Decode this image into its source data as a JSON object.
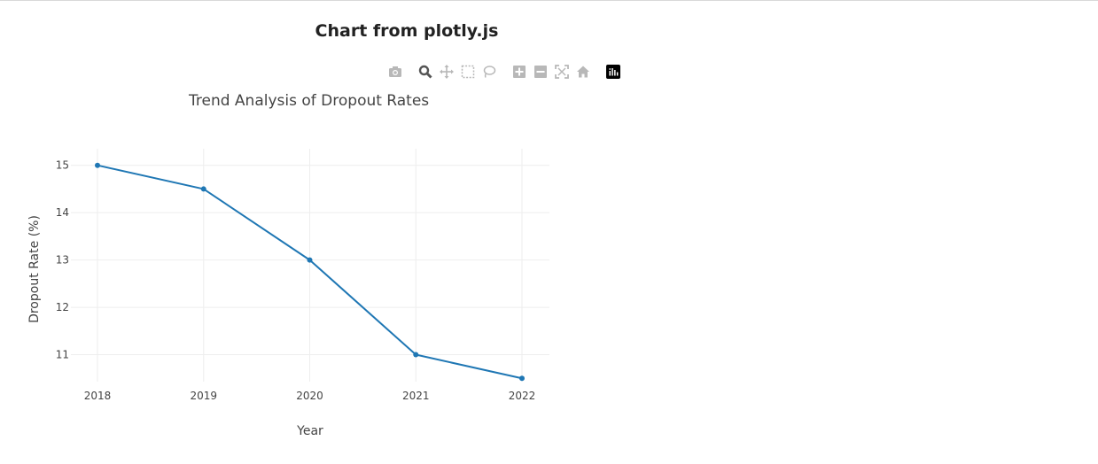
{
  "page": {
    "title": "Chart from plotly.js"
  },
  "modebar": {
    "buttons": [
      {
        "icon": "camera-icon",
        "name": "download-plot-button",
        "active": false
      },
      {
        "icon": "zoom-icon",
        "name": "zoom-button",
        "active": true
      },
      {
        "icon": "pan-icon",
        "name": "pan-button",
        "active": false
      },
      {
        "icon": "box-select-icon",
        "name": "box-select-button",
        "active": false
      },
      {
        "icon": "lasso-select-icon",
        "name": "lasso-select-button",
        "active": false
      },
      {
        "icon": "zoom-in-icon",
        "name": "zoom-in-button",
        "active": false
      },
      {
        "icon": "zoom-out-icon",
        "name": "zoom-out-button",
        "active": false
      },
      {
        "icon": "autoscale-icon",
        "name": "autoscale-button",
        "active": false
      },
      {
        "icon": "reset-axes-icon",
        "name": "reset-axes-button",
        "active": false
      },
      {
        "icon": "plotly-logo-icon",
        "name": "plotly-logo-button",
        "active": false
      }
    ],
    "icon_color": "#b8b8b8",
    "active_color": "#555555"
  },
  "chart_data": {
    "type": "line",
    "title": "Trend Analysis of Dropout Rates",
    "xlabel": "Year",
    "ylabel": "Dropout Rate (%)",
    "categories": [
      "2018",
      "2019",
      "2020",
      "2021",
      "2022"
    ],
    "series": [
      {
        "values": [
          15,
          14.5,
          13,
          11,
          10.5
        ],
        "color": "#1f77b4",
        "mode": "lines+markers"
      }
    ],
    "yticks": [
      "11",
      "12",
      "13",
      "14",
      "15"
    ],
    "ylim": [
      10.43,
      15.35
    ],
    "grid": true,
    "legend": "none"
  }
}
